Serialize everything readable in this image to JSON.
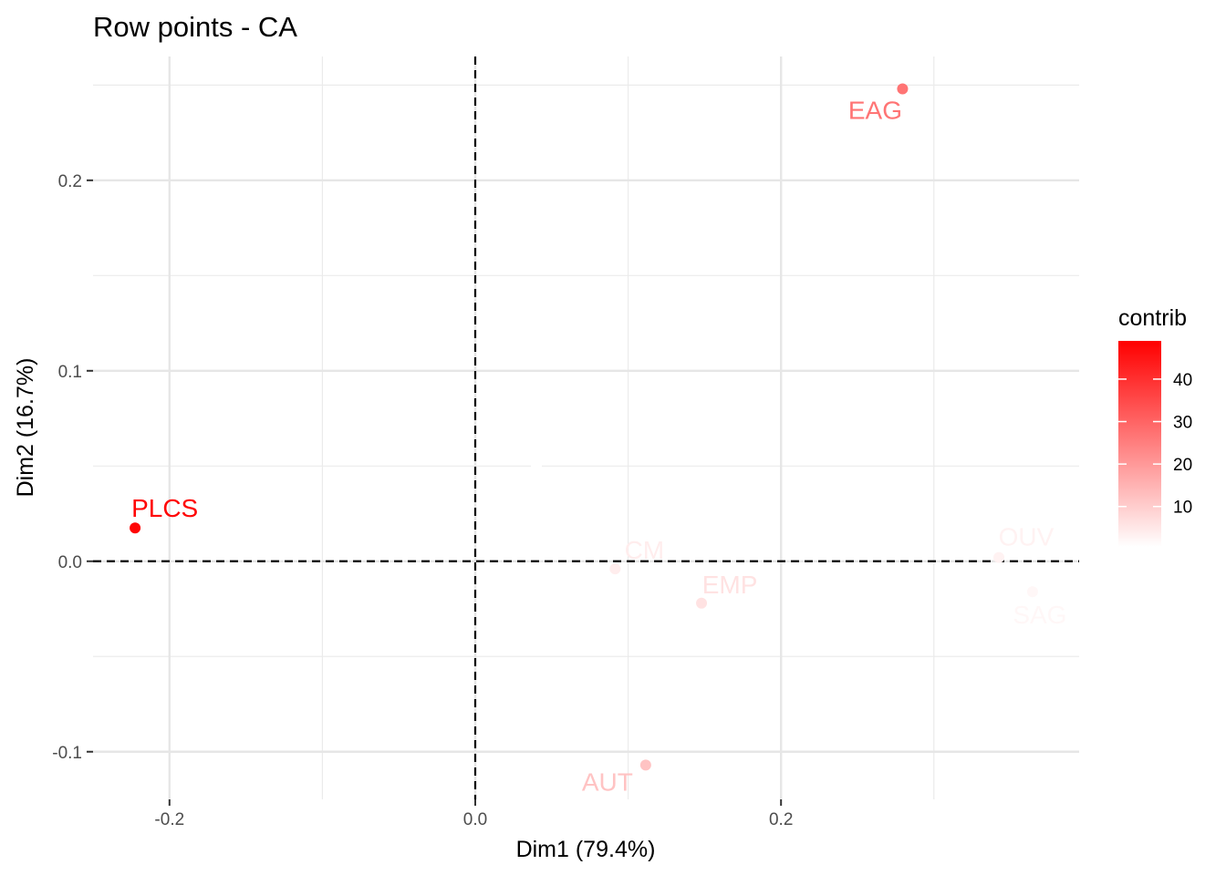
{
  "chart_data": {
    "type": "scatter",
    "title": "Row points - CA",
    "xlabel": "Dim1 (79.4%)",
    "ylabel": "Dim2 (16.7%)",
    "xlim": [
      -0.25,
      0.395
    ],
    "ylim": [
      -0.125,
      0.265
    ],
    "x_ticks": [
      {
        "value": -0.2,
        "label": "-0.2"
      },
      {
        "value": 0.0,
        "label": "0.0"
      },
      {
        "value": 0.2,
        "label": "0.2"
      }
    ],
    "y_ticks": [
      {
        "value": -0.1,
        "label": "-0.1"
      },
      {
        "value": 0.0,
        "label": "0.0"
      },
      {
        "value": 0.1,
        "label": "0.1"
      },
      {
        "value": 0.2,
        "label": "0.2"
      }
    ],
    "grid": true,
    "reference_lines": {
      "x": 0,
      "y": 0,
      "style": "dashed"
    },
    "points": [
      {
        "label": "PLCS",
        "x": -0.2225,
        "y": 0.0175,
        "contrib": 48
      },
      {
        "label": "EAG",
        "x": 0.2795,
        "y": 0.248,
        "contrib": 27
      },
      {
        "label": "CM",
        "x": 0.0915,
        "y": -0.004,
        "contrib": 4
      },
      {
        "label": "EMP",
        "x": 0.148,
        "y": -0.022,
        "contrib": 6
      },
      {
        "label": "AUT",
        "x": 0.1115,
        "y": -0.107,
        "contrib": 12
      },
      {
        "label": "OUV",
        "x": 0.3425,
        "y": 0.002,
        "contrib": 3
      },
      {
        "label": "SAG",
        "x": 0.3645,
        "y": -0.016,
        "contrib": 2
      },
      {
        "label": "",
        "x": 0.04,
        "y": 0.05,
        "contrib": 0.5
      }
    ],
    "legend": {
      "title": "contrib",
      "placement": "right",
      "min": 0.5,
      "max": 49,
      "ticks": [
        10,
        20,
        30,
        40
      ],
      "color_low": "#ffffff",
      "color_high": "#ff0000"
    }
  }
}
